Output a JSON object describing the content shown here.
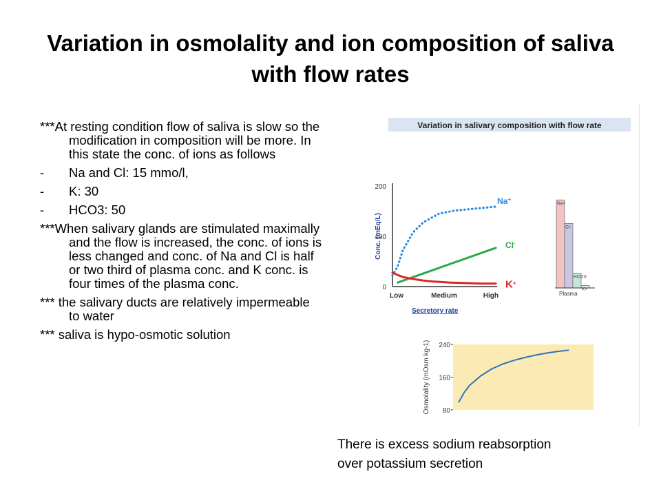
{
  "slide": {
    "title": "Variation in osmolality and ion composition of saliva with flow rates",
    "bullets": [
      {
        "type": "para",
        "text": "***At resting condition flow of saliva is slow so the modification in composition will be more. In this state the conc. of ions as follows"
      },
      {
        "type": "dash",
        "mark": "-",
        "text": "Na and Cl: 15 mmo/l,"
      },
      {
        "type": "dash",
        "mark": "-",
        "text": "K: 30"
      },
      {
        "type": "dash",
        "mark": "-",
        "text": "HCO3: 50"
      },
      {
        "type": "para",
        "text": "***When salivary glands are stimulated maximally and the flow is increased, the conc. of ions is less changed and conc. of Na and Cl is half or two third of plasma conc. and  K conc. is four times of the plasma conc."
      },
      {
        "type": "para",
        "text": "*** the salivary ducts are relatively impermeable to water"
      },
      {
        "type": "para",
        "text": "*** saliva is hypo-osmotic solution"
      }
    ],
    "caption_line1": "There is excess sodium reabsorption",
    "caption_line2": "over potassium secretion"
  },
  "colors": {
    "na": "#2a8be0",
    "cl": "#2aa84a",
    "k": "#e02424",
    "axis": "#333333",
    "label_blue": "#1b3f9c",
    "banner": "#dbe4f2",
    "plasma_na": "#f2c3c3",
    "plasma_cl": "#c9c6e4",
    "plasma_hco3": "#c6e6d8",
    "plasma_k": "#e4e4e4",
    "osm_bg": "#fbeab4",
    "osm_line": "#2874b8"
  },
  "chart_data": [
    {
      "type": "line",
      "title": "Variation in salivary composition with flow rate",
      "xlabel": "Secretory rate",
      "ylabel": "Conc. (mEq/L)",
      "x_ticks": [
        "Low",
        "Medium",
        "High"
      ],
      "y_ticks": [
        "0",
        "100",
        "200"
      ],
      "ylim": [
        0,
        200
      ],
      "xlim": [
        0,
        1
      ],
      "grid": false,
      "series": [
        {
          "name": "Na",
          "superscript": "+",
          "style": "dotted",
          "x": [
            0,
            0.05,
            0.1,
            0.2,
            0.3,
            0.45,
            0.6,
            0.8,
            1.0
          ],
          "y": [
            22,
            40,
            72,
            108,
            128,
            145,
            151,
            155,
            159
          ]
        },
        {
          "name": "Cl",
          "superscript": "-",
          "style": "solid",
          "x": [
            0.05,
            1.0
          ],
          "y": [
            8,
            77
          ]
        },
        {
          "name": "K",
          "superscript": "+",
          "style": "solid",
          "x": [
            0,
            0.05,
            0.1,
            0.2,
            0.3,
            0.4,
            0.55,
            0.7,
            0.85,
            1.0
          ],
          "y": [
            28,
            23,
            19,
            15,
            12,
            10,
            8,
            7,
            6,
            6
          ]
        }
      ],
      "plasma_bar_labels": [
        "Na+",
        "Cl-",
        "HCO3-",
        "K+"
      ],
      "plasma_bar_values": [
        142,
        104,
        24,
        4
      ],
      "plasma_label": "Plasma"
    },
    {
      "type": "line",
      "ylabel": "Osmolality (mOsm kg-1)",
      "y_ticks": [
        "80",
        "160",
        "240"
      ],
      "ylim": [
        80,
        240
      ],
      "xlim": [
        0,
        1
      ],
      "series": [
        {
          "x": [
            0.0,
            0.05,
            0.1,
            0.2,
            0.3,
            0.4,
            0.5,
            0.6,
            0.7,
            0.8,
            0.9,
            1.0
          ],
          "y": [
            98,
            122,
            140,
            163,
            180,
            192,
            201,
            208,
            214,
            219,
            223,
            226
          ]
        }
      ]
    }
  ]
}
